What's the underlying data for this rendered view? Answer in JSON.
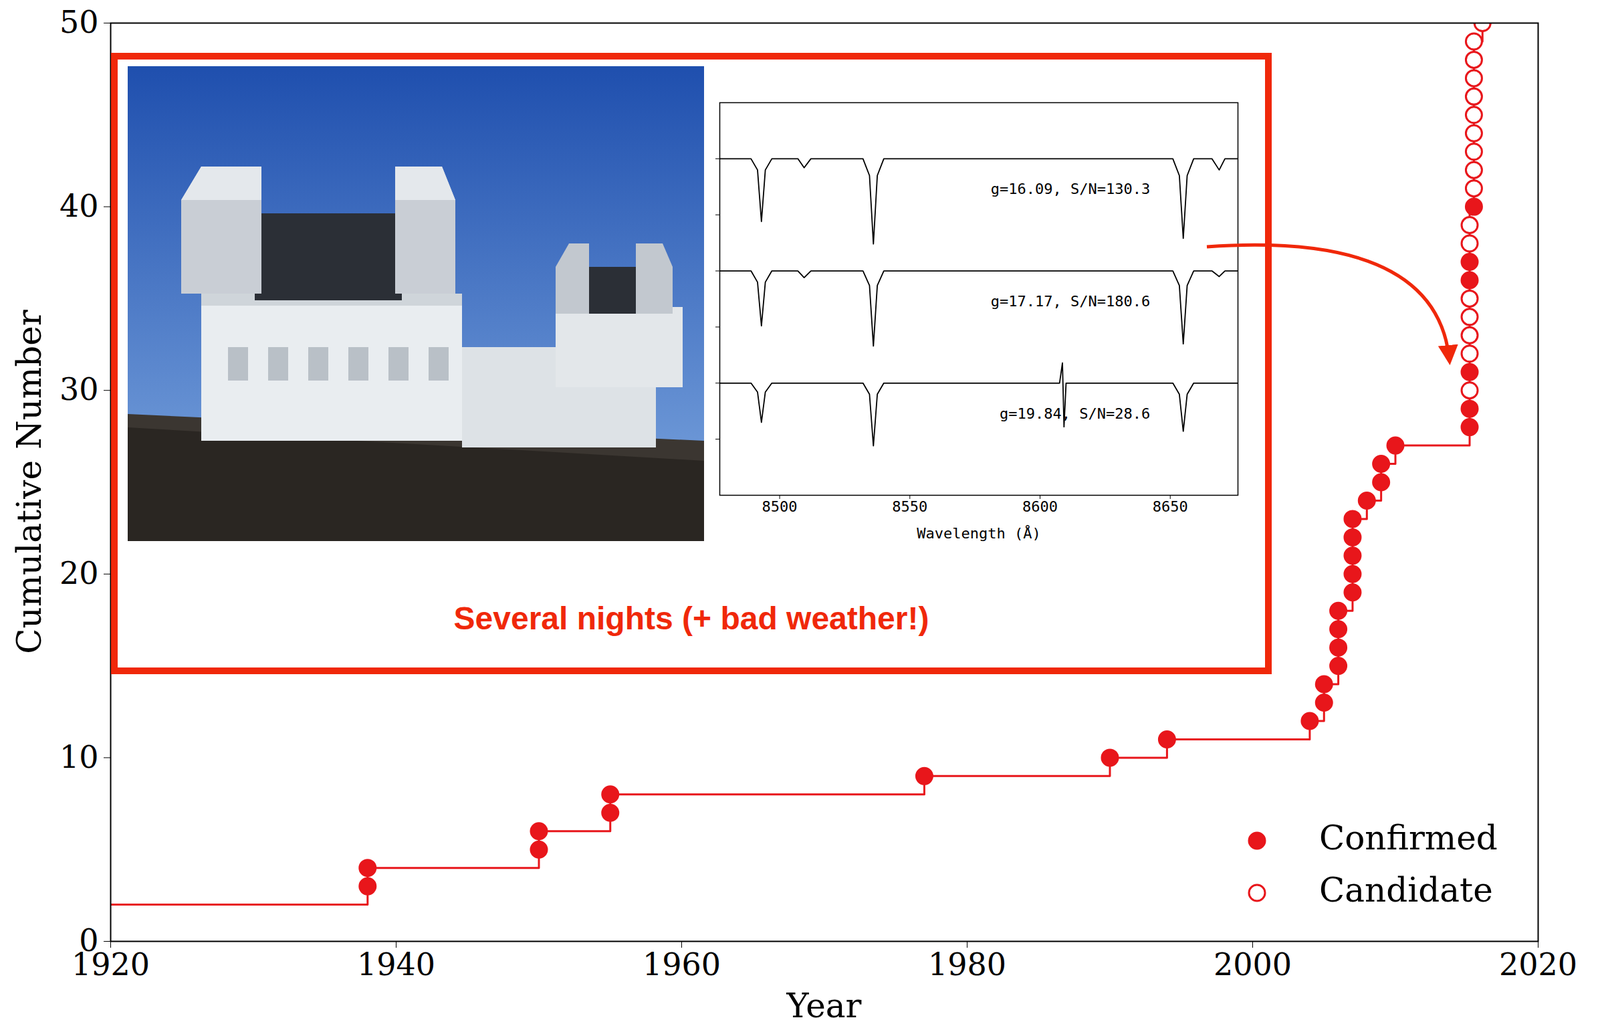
{
  "chart_data": [
    {
      "type": "line",
      "xlabel": "Year",
      "ylabel": "Cumulative Number",
      "xlim": [
        1920,
        2020
      ],
      "xticks": [
        1920,
        1940,
        1960,
        1980,
        2000,
        2020
      ],
      "ylim": [
        0,
        50
      ],
      "yticks": [
        0,
        10,
        20,
        30,
        40,
        50
      ],
      "grid": false,
      "legend": "lower right",
      "annotations": [
        "Several nights (+ bad weather!)"
      ],
      "series": [
        {
          "type": "line",
          "line_style": "step",
          "color": "#e8161b",
          "x": [
            1920,
            1938,
            1950,
            1955,
            1977,
            1990,
            1994,
            2004,
            2005,
            2006,
            2007,
            2008,
            2009,
            2010,
            2015.2,
            2015.5,
            2016.1
          ],
          "values": [
            2,
            4,
            6,
            8,
            9,
            10,
            11,
            12,
            14,
            18,
            23,
            24,
            26,
            27,
            40,
            49,
            50
          ]
        },
        {
          "name": "Confirmed",
          "type": "scatter",
          "marker": "circle",
          "color": "#e8161b",
          "x": [
            1938,
            1938,
            1950,
            1950,
            1955,
            1955,
            1977,
            1990,
            1994,
            2004,
            2005,
            2005,
            2006,
            2006,
            2006,
            2006,
            2007,
            2007,
            2007,
            2007,
            2007,
            2008,
            2009,
            2009,
            2010,
            2015.2,
            2015.2,
            2015.2,
            2015.2,
            2015.2,
            2015.5
          ],
          "values": [
            3,
            4,
            5,
            6,
            7,
            8,
            9,
            10,
            11,
            12,
            13,
            14,
            15,
            16,
            17,
            18,
            19,
            20,
            21,
            22,
            23,
            24,
            25,
            26,
            27,
            28,
            29,
            31,
            36,
            37,
            40
          ]
        },
        {
          "name": "Candidate",
          "type": "scatter",
          "marker": "open circle",
          "color": "#e8161b",
          "x": [
            2015.2,
            2015.2,
            2015.2,
            2015.2,
            2015.2,
            2015.2,
            2015.2,
            2015.5,
            2015.5,
            2015.5,
            2015.5,
            2015.5,
            2015.5,
            2015.5,
            2015.5,
            2015.5,
            2016.1
          ],
          "values": [
            30,
            32,
            33,
            34,
            35,
            38,
            39,
            41,
            42,
            43,
            44,
            45,
            46,
            47,
            48,
            49,
            50
          ]
        }
      ]
    },
    {
      "type": "line",
      "xlabel": "Wavelength (Å)",
      "xlim": [
        8477,
        8676
      ],
      "xticks": [
        8500,
        8550,
        8600,
        8650
      ],
      "ylim": [
        0,
        3.5
      ],
      "yticks": [
        0.5,
        1,
        1.5,
        2,
        2.5,
        3
      ],
      "tick_labels": "x",
      "color": "#000000",
      "series": [
        {
          "name": "g=16.09, S/N=130.3",
          "x": [
            8477,
            8489,
            8491.5,
            8493,
            8494.5,
            8497,
            8507,
            8509.4,
            8512,
            8532,
            8534.5,
            8536,
            8537.5,
            8540,
            8580,
            8651,
            8653.5,
            8655,
            8656.5,
            8659,
            8666,
            8668.8,
            8671,
            8676
          ],
          "values": [
            3.0,
            3.0,
            2.9,
            2.44,
            2.9,
            3.0,
            3.0,
            2.92,
            3.0,
            3.0,
            2.85,
            2.24,
            2.85,
            3.0,
            3.0,
            3.0,
            2.85,
            2.29,
            2.85,
            3.0,
            3.0,
            2.9,
            3.0,
            3.0
          ]
        },
        {
          "name": "g=17.17, S/N=180.6",
          "x": [
            8477,
            8489,
            8491.5,
            8493,
            8494.5,
            8497,
            8507,
            8509.4,
            8512,
            8532,
            8534.5,
            8536,
            8537.5,
            8540,
            8580,
            8651,
            8653.5,
            8655,
            8656.5,
            8659,
            8666,
            8668.8,
            8671,
            8676
          ],
          "values": [
            2.0,
            2.0,
            1.9,
            1.51,
            1.9,
            2.0,
            2.0,
            1.94,
            2.0,
            2.0,
            1.87,
            1.33,
            1.87,
            2.0,
            2.0,
            2.0,
            1.87,
            1.35,
            1.87,
            2.0,
            2.0,
            1.95,
            2.0,
            2.0
          ]
        },
        {
          "name": "g=19.84, S/N=28.6",
          "x": [
            8477,
            8489,
            8491.5,
            8493,
            8494.5,
            8497,
            8507,
            8512,
            8532,
            8534.5,
            8536,
            8537.5,
            8540,
            8580,
            8607.5,
            8608.6,
            8609.2,
            8610,
            8651,
            8653.5,
            8655,
            8656.5,
            8659,
            8676
          ],
          "values": [
            1.0,
            1.0,
            0.92,
            0.65,
            0.92,
            1.0,
            1.0,
            1.0,
            1.0,
            0.9,
            0.44,
            0.9,
            1.0,
            1.0,
            1.0,
            1.18,
            0.61,
            1.0,
            1.0,
            0.9,
            0.57,
            0.9,
            1.0,
            1.0
          ]
        }
      ]
    }
  ]
}
